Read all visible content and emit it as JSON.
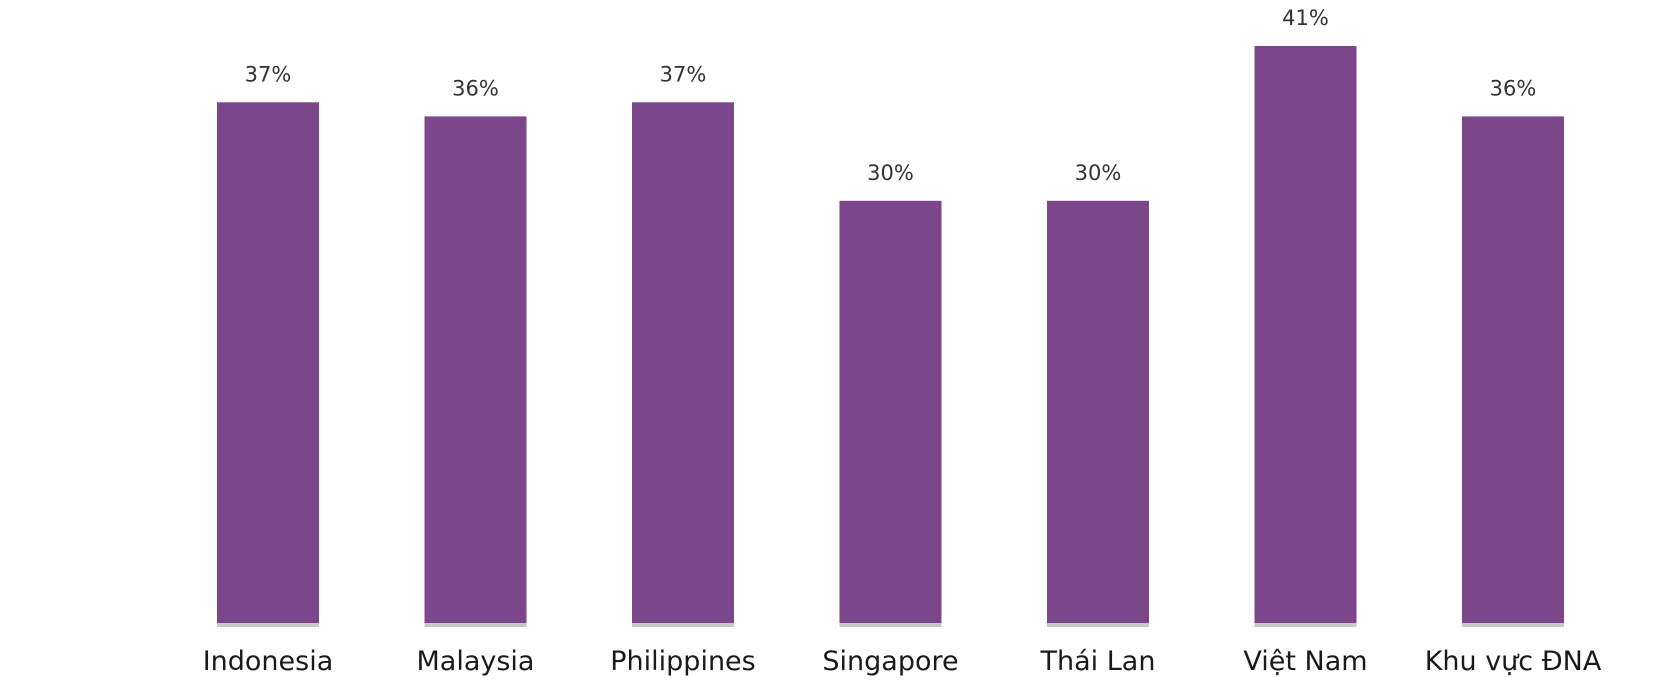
{
  "chart_data": {
    "type": "bar",
    "title": "",
    "xlabel": "",
    "ylabel": "",
    "categories": [
      "Indonesia",
      "Malaysia",
      "Philippines",
      "Singapore",
      "Thái  Lan",
      "Việt Nam",
      "Khu vực ĐNA"
    ],
    "values": [
      37,
      36,
      37,
      30,
      30,
      41,
      36
    ],
    "value_labels": [
      "37%",
      "36%",
      "37%",
      "30%",
      "30%",
      "41%",
      "36%"
    ],
    "ylim": [
      0,
      41
    ],
    "grid": false,
    "legend": "none",
    "colors": {
      "bar": "#7b468a",
      "baseline": "#c8c8c8"
    }
  }
}
